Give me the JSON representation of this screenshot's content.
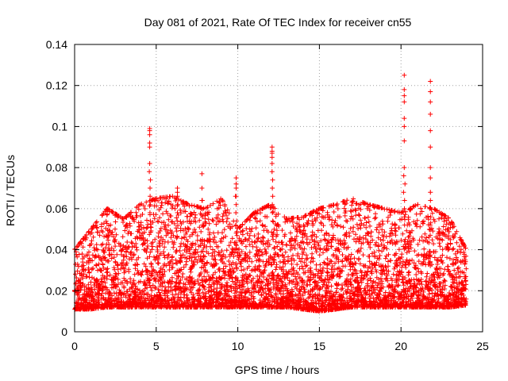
{
  "chart_data": {
    "type": "scatter",
    "title": "Day 081 of 2021, Rate Of TEC Index for receiver cn55",
    "xlabel": "GPS time / hours",
    "ylabel": "ROTI / TECUs",
    "xlim": [
      0,
      25
    ],
    "ylim": [
      0,
      0.14
    ],
    "x_ticks": [
      0,
      5,
      10,
      15,
      20,
      25
    ],
    "x_tick_labels": [
      "0",
      "5",
      "10",
      "15",
      "20",
      "25"
    ],
    "y_ticks": [
      0,
      0.02,
      0.04,
      0.06,
      0.08,
      0.1,
      0.12,
      0.14
    ],
    "y_tick_labels": [
      "0",
      "0.02",
      "0.04",
      "0.06",
      "0.08",
      "0.1",
      "0.12",
      "0.14"
    ],
    "grid": true,
    "marker": "+",
    "series": [
      {
        "name": "ROTI",
        "color": "#ff0000",
        "envelope": {
          "description": "approximate upper/lower extent of the dense ROTI point cloud over time",
          "x": [
            0,
            1,
            2,
            3,
            4,
            5,
            6,
            7,
            8,
            9,
            10,
            11,
            12,
            13,
            14,
            15,
            16,
            17,
            18,
            19,
            20,
            21,
            22,
            23,
            24
          ],
          "low": [
            0.005,
            0.005,
            0.006,
            0.006,
            0.006,
            0.006,
            0.006,
            0.006,
            0.006,
            0.006,
            0.006,
            0.006,
            0.006,
            0.006,
            0.005,
            0.004,
            0.005,
            0.006,
            0.006,
            0.006,
            0.006,
            0.006,
            0.006,
            0.006,
            0.007
          ],
          "high": [
            0.04,
            0.05,
            0.06,
            0.055,
            0.062,
            0.065,
            0.066,
            0.062,
            0.06,
            0.065,
            0.05,
            0.058,
            0.062,
            0.055,
            0.056,
            0.06,
            0.062,
            0.065,
            0.062,
            0.06,
            0.058,
            0.062,
            0.06,
            0.055,
            0.04
          ]
        },
        "spikes": [
          {
            "x": 4.6,
            "y": [
              0.082,
              0.09,
              0.092,
              0.096,
              0.098,
              0.099
            ]
          },
          {
            "x": 6.3,
            "y": [
              0.062,
              0.066,
              0.068,
              0.07
            ]
          },
          {
            "x": 7.8,
            "y": [
              0.064,
              0.07,
              0.077
            ]
          },
          {
            "x": 9.9,
            "y": [
              0.066,
              0.07,
              0.072,
              0.075
            ]
          },
          {
            "x": 12.1,
            "y": [
              0.078,
              0.082,
              0.085,
              0.087,
              0.088,
              0.09
            ]
          },
          {
            "x": 20.2,
            "y": [
              0.08,
              0.093,
              0.1,
              0.104,
              0.112,
              0.115,
              0.118,
              0.125
            ]
          },
          {
            "x": 21.8,
            "y": [
              0.068,
              0.075,
              0.08,
              0.09,
              0.098,
              0.106,
              0.112,
              0.117,
              0.122
            ]
          }
        ]
      }
    ]
  }
}
